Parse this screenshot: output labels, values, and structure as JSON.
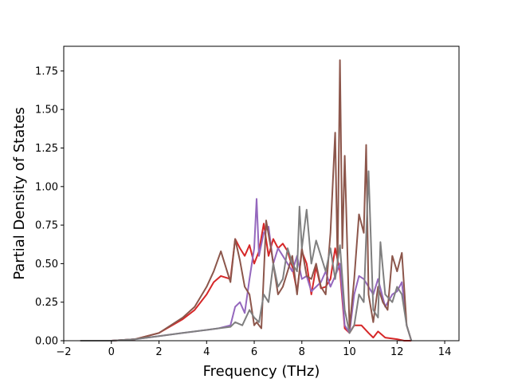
{
  "chart_data": {
    "type": "line",
    "title": "",
    "xlabel": "Frequency (THz)",
    "ylabel": "Partial Density of States",
    "xlim": [
      -2,
      14.6
    ],
    "ylim": [
      0,
      1.91
    ],
    "xticks": [
      -2,
      0,
      2,
      4,
      6,
      8,
      10,
      12,
      14
    ],
    "xtick_labels": [
      "−2",
      "0",
      "2",
      "4",
      "6",
      "8",
      "10",
      "12",
      "14"
    ],
    "yticks": [
      0.0,
      0.25,
      0.5,
      0.75,
      1.0,
      1.25,
      1.5,
      1.75
    ],
    "ytick_labels": [
      "0.00",
      "0.25",
      "0.50",
      "0.75",
      "1.00",
      "1.25",
      "1.50",
      "1.75"
    ],
    "grid": false,
    "legend": "none",
    "series": [
      {
        "color": "#d62728",
        "x": [
          -1.3,
          0.0,
          1.0,
          2.0,
          3.0,
          3.5,
          4.0,
          4.3,
          4.6,
          5.0,
          5.2,
          5.4,
          5.6,
          5.8,
          6.0,
          6.2,
          6.4,
          6.6,
          6.8,
          7.0,
          7.2,
          7.4,
          7.6,
          7.8,
          8.0,
          8.2,
          8.4,
          8.6,
          8.8,
          9.0,
          9.2,
          9.4,
          9.6,
          9.8,
          10.0,
          10.2,
          10.5,
          10.8,
          11.0,
          11.2,
          11.5,
          12.0,
          12.3,
          12.6
        ],
        "y": [
          0,
          0,
          0.01,
          0.05,
          0.14,
          0.2,
          0.3,
          0.38,
          0.42,
          0.4,
          0.66,
          0.6,
          0.55,
          0.62,
          0.5,
          0.58,
          0.76,
          0.55,
          0.66,
          0.6,
          0.63,
          0.58,
          0.48,
          0.32,
          0.58,
          0.5,
          0.3,
          0.48,
          0.34,
          0.35,
          0.4,
          0.6,
          0.45,
          0.08,
          0.05,
          0.1,
          0.1,
          0.05,
          0.02,
          0.06,
          0.02,
          0.01,
          0.0,
          0.0
        ]
      },
      {
        "color": "#9467bd",
        "x": [
          -1.3,
          0.0,
          1.0,
          2.0,
          3.0,
          3.5,
          4.0,
          4.5,
          5.0,
          5.2,
          5.4,
          5.6,
          5.8,
          6.0,
          6.1,
          6.2,
          6.4,
          6.6,
          6.8,
          7.0,
          7.2,
          7.4,
          7.6,
          7.8,
          8.0,
          8.2,
          8.4,
          8.6,
          8.8,
          9.0,
          9.2,
          9.4,
          9.6,
          9.8,
          10.0,
          10.2,
          10.4,
          10.6,
          10.8,
          11.0,
          11.2,
          11.5,
          11.8,
          12.0,
          12.2,
          12.4,
          12.6
        ],
        "y": [
          0,
          0,
          0.01,
          0.03,
          0.05,
          0.06,
          0.07,
          0.08,
          0.1,
          0.22,
          0.25,
          0.18,
          0.4,
          0.6,
          0.92,
          0.55,
          0.7,
          0.74,
          0.5,
          0.6,
          0.55,
          0.5,
          0.45,
          0.55,
          0.4,
          0.42,
          0.32,
          0.35,
          0.38,
          0.45,
          0.35,
          0.42,
          0.5,
          0.1,
          0.05,
          0.3,
          0.42,
          0.4,
          0.35,
          0.3,
          0.4,
          0.22,
          0.3,
          0.32,
          0.38,
          0.1,
          0.0
        ]
      },
      {
        "color": "#8c564b",
        "x": [
          -1.3,
          0.0,
          1.0,
          2.0,
          3.0,
          3.5,
          4.0,
          4.3,
          4.6,
          5.0,
          5.2,
          5.4,
          5.6,
          5.8,
          6.0,
          6.1,
          6.3,
          6.5,
          6.7,
          7.0,
          7.2,
          7.4,
          7.6,
          7.8,
          8.0,
          8.2,
          8.4,
          8.6,
          8.8,
          9.0,
          9.2,
          9.4,
          9.5,
          9.6,
          9.7,
          9.8,
          10.0,
          10.2,
          10.4,
          10.6,
          10.7,
          10.8,
          11.0,
          11.2,
          11.4,
          11.6,
          11.8,
          12.0,
          12.2,
          12.4,
          12.6
        ],
        "y": [
          0,
          0,
          0.01,
          0.05,
          0.15,
          0.22,
          0.35,
          0.45,
          0.58,
          0.38,
          0.66,
          0.52,
          0.35,
          0.3,
          0.1,
          0.12,
          0.08,
          0.78,
          0.6,
          0.3,
          0.35,
          0.45,
          0.55,
          0.3,
          0.6,
          0.42,
          0.4,
          0.5,
          0.35,
          0.3,
          0.7,
          1.35,
          0.5,
          1.82,
          0.6,
          1.2,
          0.08,
          0.4,
          0.82,
          0.7,
          1.27,
          0.3,
          0.12,
          0.35,
          0.25,
          0.2,
          0.55,
          0.45,
          0.57,
          0.1,
          0.0
        ]
      },
      {
        "color": "#7f7f7f",
        "x": [
          -1.3,
          0.0,
          1.0,
          2.0,
          3.0,
          3.5,
          4.0,
          4.5,
          5.0,
          5.2,
          5.5,
          5.8,
          6.0,
          6.2,
          6.4,
          6.6,
          6.8,
          7.0,
          7.2,
          7.4,
          7.6,
          7.8,
          7.9,
          8.0,
          8.2,
          8.4,
          8.6,
          8.8,
          9.0,
          9.2,
          9.4,
          9.6,
          9.8,
          10.0,
          10.2,
          10.4,
          10.6,
          10.8,
          11.0,
          11.2,
          11.3,
          11.5,
          11.8,
          12.0,
          12.2,
          12.4,
          12.6
        ],
        "y": [
          0,
          0,
          0.01,
          0.03,
          0.05,
          0.06,
          0.07,
          0.08,
          0.09,
          0.12,
          0.1,
          0.2,
          0.15,
          0.12,
          0.3,
          0.25,
          0.5,
          0.35,
          0.4,
          0.6,
          0.5,
          0.45,
          0.87,
          0.6,
          0.85,
          0.5,
          0.65,
          0.55,
          0.45,
          0.6,
          0.4,
          0.62,
          0.2,
          0.05,
          0.1,
          0.3,
          0.25,
          1.1,
          0.2,
          0.15,
          0.64,
          0.3,
          0.25,
          0.35,
          0.3,
          0.1,
          0.0
        ]
      }
    ]
  }
}
